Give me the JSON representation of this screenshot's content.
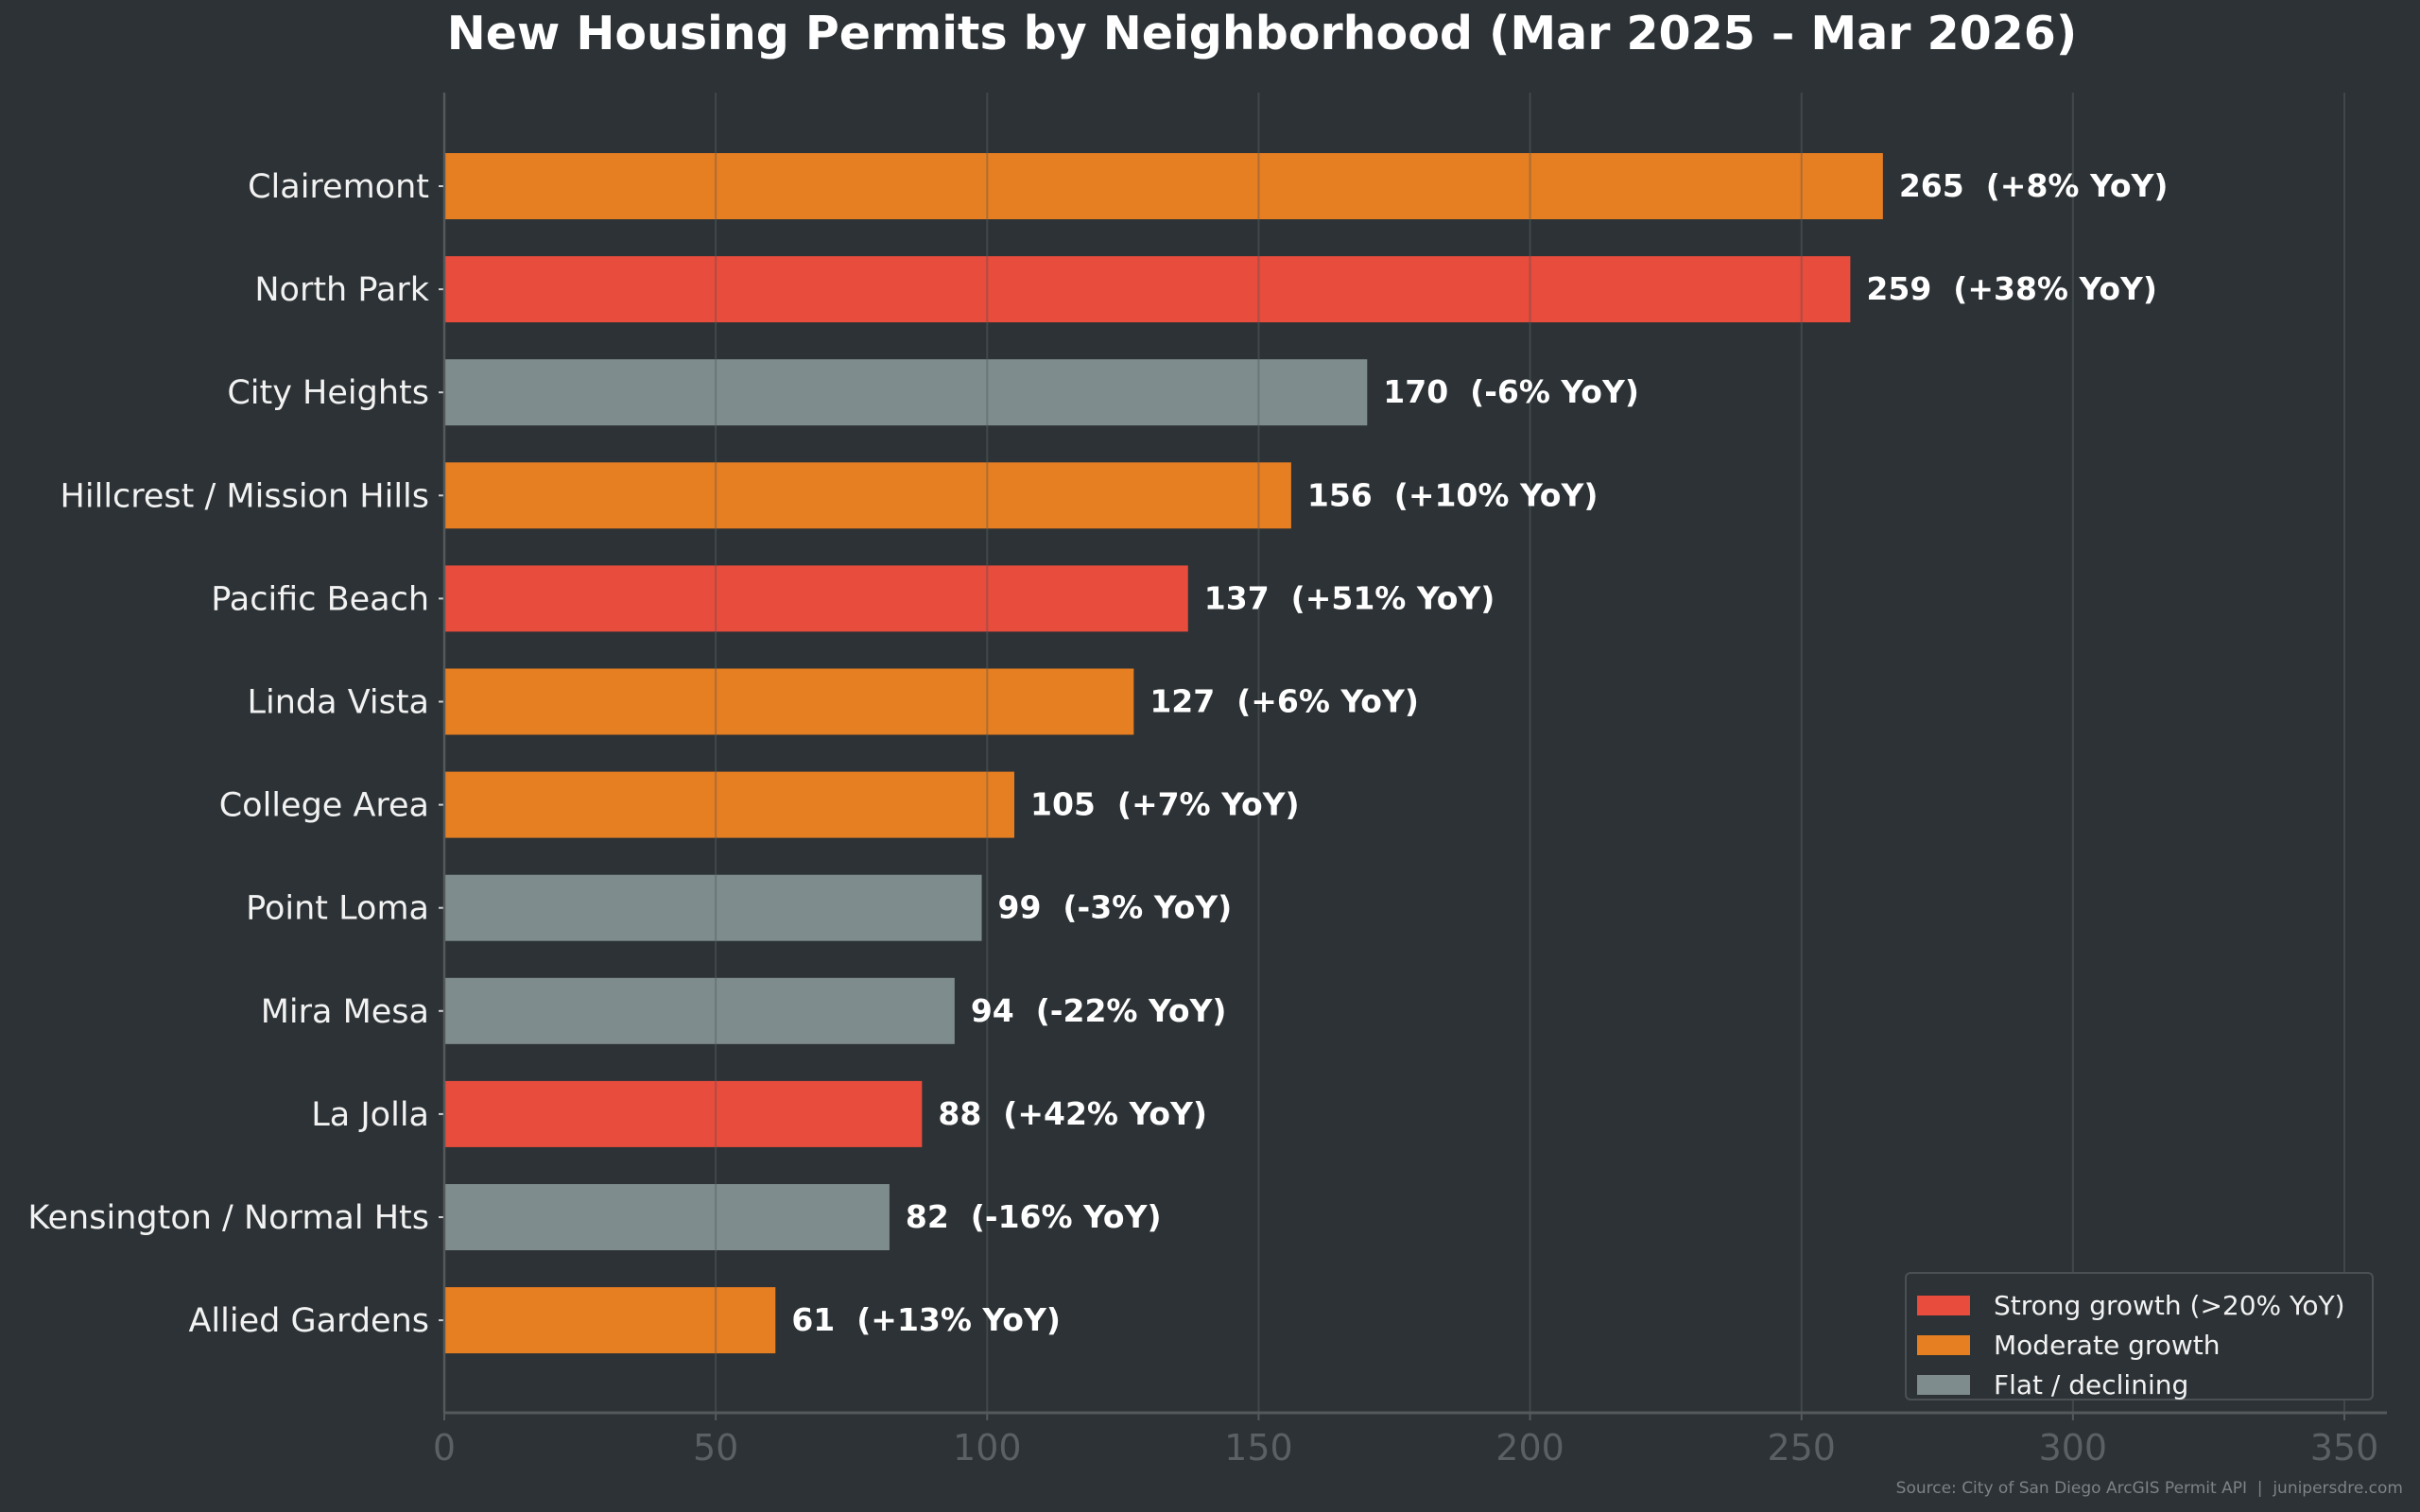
{
  "chart_data": {
    "type": "bar",
    "orientation": "horizontal",
    "title": "New Housing Permits by Neighborhood (Mar 2025 – Mar 2026)",
    "xlabel": "",
    "ylabel": "",
    "xlim": [
      0,
      358
    ],
    "x_ticks": [
      0,
      50,
      100,
      150,
      200,
      250,
      300,
      350
    ],
    "grid": "vertical",
    "legend_position": "bottom-right",
    "categories": [
      "Clairemont",
      "North Park",
      "City Heights",
      "Hillcrest / Mission Hills",
      "Pacific Beach",
      "Linda Vista",
      "College Area",
      "Point Loma",
      "Mira Mesa",
      "La Jolla",
      "Kensington / Normal Hts",
      "Allied Gardens"
    ],
    "values": [
      265,
      259,
      170,
      156,
      137,
      127,
      105,
      99,
      94,
      88,
      82,
      61
    ],
    "yoy_change_pct": [
      8,
      38,
      -6,
      10,
      51,
      6,
      7,
      -3,
      -22,
      42,
      -16,
      13
    ],
    "data_labels": [
      "265  (+8% YoY)",
      "259  (+38% YoY)",
      "170  (-6% YoY)",
      "156  (+10% YoY)",
      "137  (+51% YoY)",
      "127  (+6% YoY)",
      "105  (+7% YoY)",
      "99  (-3% YoY)",
      "94  (-22% YoY)",
      "88  (+42% YoY)",
      "82  (-16% YoY)",
      "61  (+13% YoY)"
    ],
    "groups": [
      "moderate",
      "strong",
      "flat",
      "moderate",
      "strong",
      "moderate",
      "moderate",
      "flat",
      "flat",
      "strong",
      "flat",
      "moderate"
    ],
    "legend": [
      {
        "key": "strong",
        "label": "Strong growth (>20% YoY)",
        "color": "#e74c3c"
      },
      {
        "key": "moderate",
        "label": "Moderate growth",
        "color": "#e67e22"
      },
      {
        "key": "flat",
        "label": "Flat / declining",
        "color": "#7f8c8d"
      }
    ],
    "source": "Source: City of San Diego ArcGIS Permit API  |  junipersdre.com"
  },
  "colors": {
    "background": "#2c3235",
    "grid": "#3e4548",
    "axis": "#55595c",
    "tick_label": "#5a6063"
  }
}
